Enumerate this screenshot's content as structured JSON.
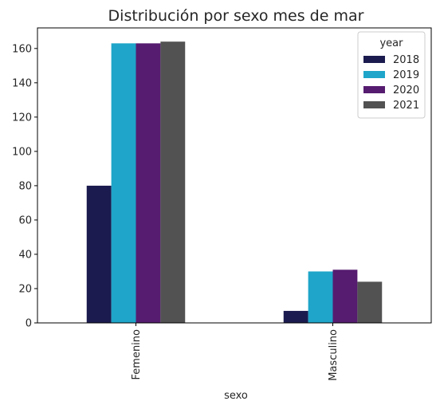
{
  "chart_data": {
    "type": "bar",
    "title": "Distribución por sexo mes de mar",
    "xlabel": "sexo",
    "ylabel": "",
    "categories": [
      "Femenino",
      "Masculino"
    ],
    "ylim": [
      0,
      172
    ],
    "yticks": [
      0,
      20,
      40,
      60,
      80,
      100,
      120,
      140,
      160
    ],
    "legend": {
      "title": "year",
      "placement": "top-right"
    },
    "series": [
      {
        "name": "2018",
        "color": "#1b1b4f",
        "values": [
          80,
          7
        ]
      },
      {
        "name": "2019",
        "color": "#1ea5c9",
        "values": [
          163,
          30
        ]
      },
      {
        "name": "2020",
        "color": "#561c70",
        "values": [
          163,
          31
        ]
      },
      {
        "name": "2021",
        "color": "#525252",
        "values": [
          164,
          24
        ]
      }
    ]
  }
}
